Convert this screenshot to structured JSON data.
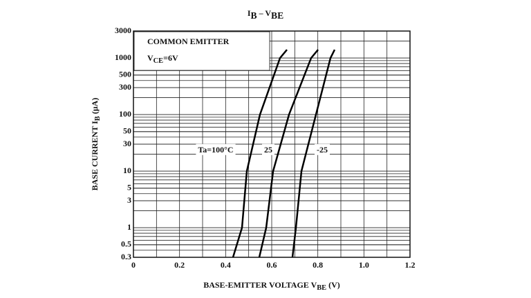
{
  "chart_data": {
    "type": "line",
    "title": [
      "I",
      "B",
      " – V",
      "BE"
    ],
    "x_label": [
      "BASE-EMITTER VOLTAGE  V",
      "BE",
      "  (V)"
    ],
    "y_label": [
      "BASE CURRENT  I",
      "B",
      "  (µA)"
    ],
    "annotations": [
      [
        "COMMON EMITTER"
      ],
      [
        "V",
        "CE",
        "=6V"
      ]
    ],
    "log_y": true,
    "grid": true,
    "xlim": [
      0,
      1.2
    ],
    "xticks": [
      0,
      0.2,
      0.4,
      0.6,
      0.8,
      {
        "value": 1,
        "label": "1.0"
      },
      1.2
    ],
    "ylim": [
      0.3,
      3000
    ],
    "yticks": [
      0.3,
      0.5,
      1,
      3,
      5,
      10,
      30,
      50,
      100,
      300,
      500,
      1000,
      3000
    ],
    "series": [
      {
        "name": "Ta=100°C",
        "color": "#000000",
        "x": [
          0.432,
          0.471,
          0.492,
          0.549,
          0.636,
          0.666
        ],
        "values": [
          0.3,
          1,
          10,
          100,
          1000,
          1400
        ]
      },
      {
        "name": "25",
        "color": "#000000",
        "x": [
          0.546,
          0.576,
          0.606,
          0.675,
          0.771,
          0.801
        ],
        "values": [
          0.3,
          1,
          10,
          100,
          1000,
          1400
        ]
      },
      {
        "name": "-25",
        "color": "#000000",
        "x": [
          0.69,
          0.705,
          0.729,
          0.792,
          0.855,
          0.873
        ],
        "values": [
          0.3,
          1,
          10,
          100,
          1000,
          1400
        ]
      }
    ]
  }
}
